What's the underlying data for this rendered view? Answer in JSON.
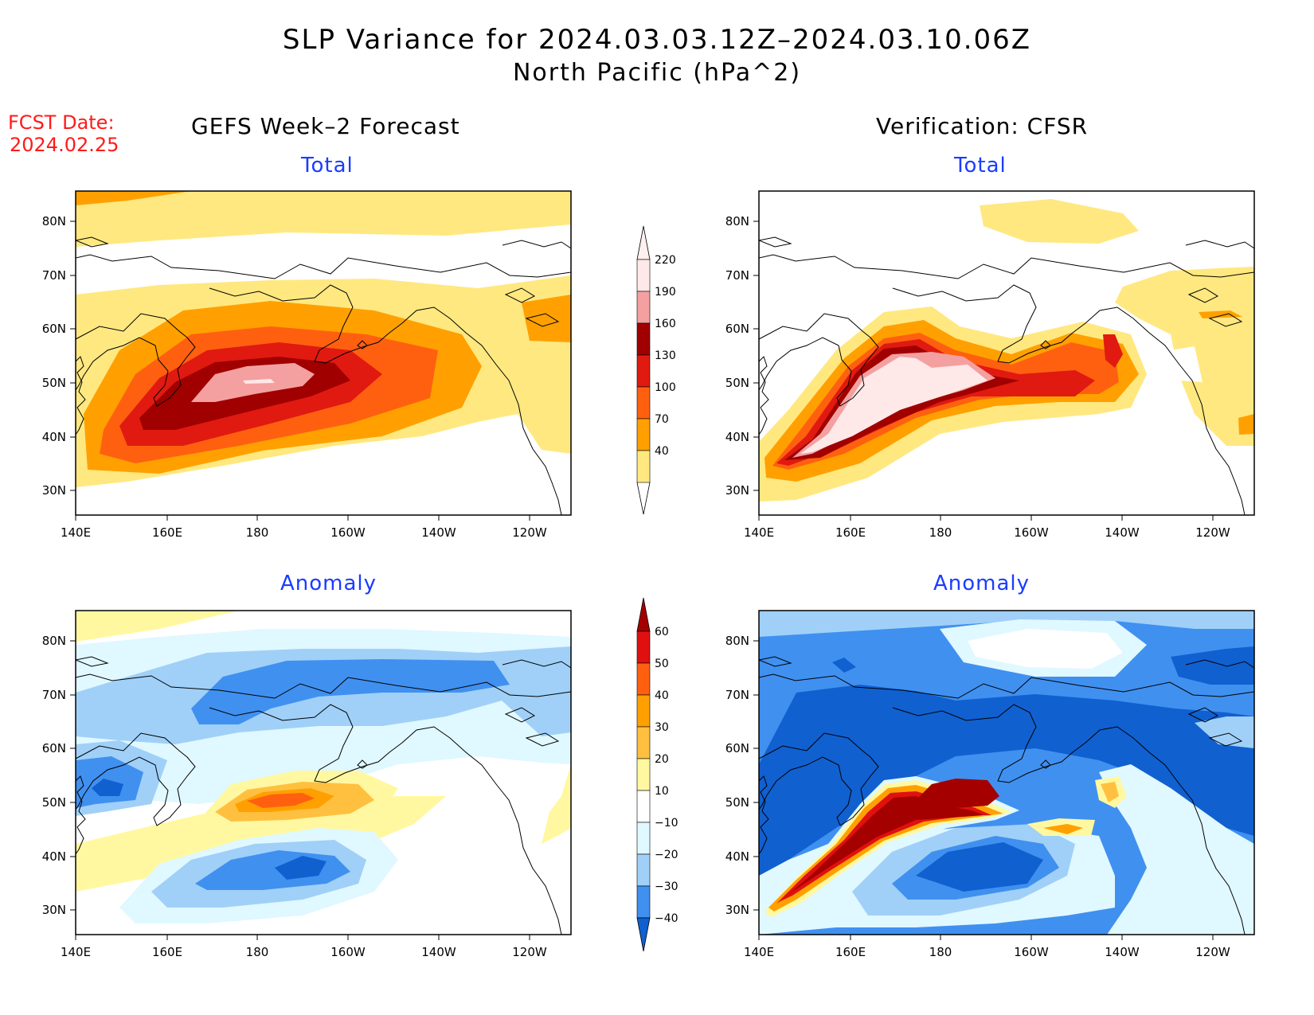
{
  "header": {
    "title": "SLP Variance for 2024.03.03.12Z–2024.03.10.06Z",
    "subtitle": "North Pacific (hPa^2)",
    "fcst_label": "FCST Date:",
    "fcst_date": "2024.02.25"
  },
  "columns": {
    "left_title": "GEFS Week–2 Forecast",
    "right_title": "Verification: CFSR"
  },
  "panels": {
    "forecast_total": "Total",
    "verif_total": "Total",
    "forecast_anomaly": "Anomaly",
    "verif_anomaly": "Anomaly"
  },
  "axes": {
    "lon_ticks": [
      "140E",
      "160E",
      "180",
      "160W",
      "140W",
      "120W"
    ],
    "lat_ticks": [
      "80N",
      "70N",
      "60N",
      "50N",
      "40N",
      "30N"
    ]
  },
  "total_colorbar": {
    "labels": [
      "220",
      "190",
      "160",
      "130",
      "100",
      "70",
      "40"
    ],
    "colors": [
      "#ffe8e8",
      "#f4a0a0",
      "#a00000",
      "#e01a10",
      "#ff6010",
      "#ffa000",
      "#ffe880"
    ]
  },
  "anomaly_colorbar": {
    "labels": [
      "60",
      "50",
      "40",
      "30",
      "20",
      "10",
      "−10",
      "−20",
      "−30",
      "−40"
    ],
    "colors": [
      "#a50000",
      "#e01010",
      "#ff6010",
      "#ffa000",
      "#ffc040",
      "#fff8a0",
      "#ffffff",
      "#e0f8ff",
      "#a0d0f8",
      "#4090f0",
      "#1060d0"
    ]
  }
}
